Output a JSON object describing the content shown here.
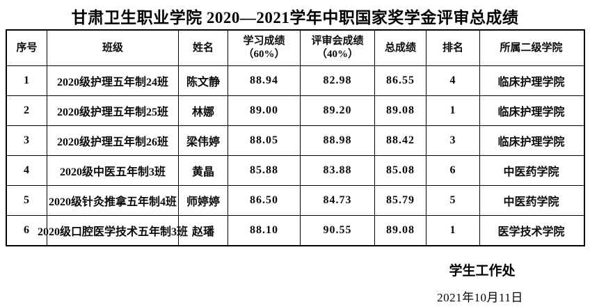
{
  "title": "甘肃卫生职业学院 2020—2021学年中职国家奖学金评审总成绩",
  "table": {
    "headers": [
      "序号",
      "班级",
      "姓名",
      "学习成绩\n（60%）",
      "评审会成绩\n（40%）",
      "总成绩",
      "排名",
      "所属二级学院"
    ],
    "rows": [
      [
        "1",
        "2020级护理五年制24班",
        "陈文静",
        "88.94",
        "82.98",
        "86.55",
        "4",
        "临床护理学院"
      ],
      [
        "2",
        "2020级护理五年制25班",
        "林娜",
        "89.00",
        "89.20",
        "89.08",
        "1",
        "临床护理学院"
      ],
      [
        "3",
        "2020级护理五年制26班",
        "梁伟婷",
        "88.05",
        "88.98",
        "88.42",
        "3",
        "临床护理学院"
      ],
      [
        "4",
        "2020级中医五年制3班",
        "黄晶",
        "85.88",
        "83.88",
        "85.08",
        "6",
        "中医药学院"
      ],
      [
        "5",
        "2020级针灸推拿五年制4班",
        "师婷婷",
        "86.50",
        "84.73",
        "85.79",
        "5",
        "中医药学院"
      ],
      [
        "6",
        "2020级口腔医学技术五年制3班",
        "赵璠",
        "88.10",
        "90.55",
        "89.08",
        "1",
        "医学技术学院"
      ]
    ]
  },
  "footer": {
    "signature": "学生工作处",
    "date": "2021年10月11日"
  },
  "colors": {
    "text": "#000000",
    "border": "#000000",
    "background": "#ffffff"
  }
}
